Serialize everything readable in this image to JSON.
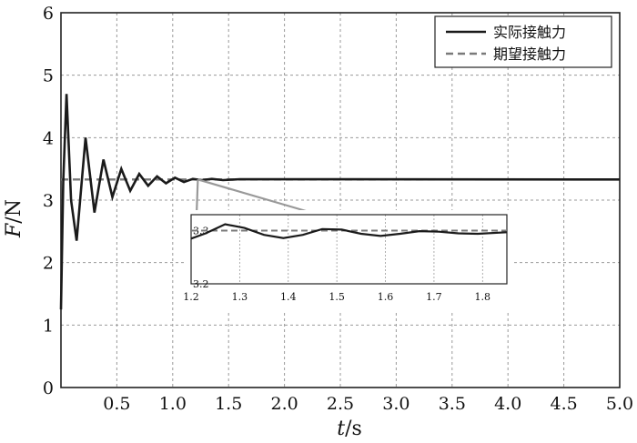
{
  "chart_data": {
    "type": "line",
    "title": "",
    "xlabel": {
      "var": "t",
      "unit": "/s"
    },
    "ylabel": {
      "var": "F",
      "unit": "/N"
    },
    "xlim": [
      0,
      5.0
    ],
    "ylim": [
      0,
      6
    ],
    "x_ticks": [
      0.5,
      1.0,
      1.5,
      2.0,
      2.5,
      3.0,
      3.5,
      4.0,
      4.5,
      5.0
    ],
    "x_tick_labels": [
      "0.5",
      "1.0",
      "1.5",
      "2.0",
      "2.5",
      "3.0",
      "3.5",
      "4.0",
      "4.5",
      "5.0"
    ],
    "y_ticks": [
      0,
      1,
      2,
      3,
      4,
      5,
      6
    ],
    "y_tick_labels": [
      "0",
      "1",
      "2",
      "3",
      "4",
      "5",
      "6"
    ],
    "grid": true,
    "legend_position": "top-right",
    "series": [
      {
        "name": "实际接触力",
        "style": "solid",
        "color": "#1a1a1a",
        "points": [
          [
            0,
            1.25
          ],
          [
            0.02,
            3.3
          ],
          [
            0.05,
            4.7
          ],
          [
            0.09,
            3.0
          ],
          [
            0.14,
            2.35
          ],
          [
            0.22,
            4.0
          ],
          [
            0.3,
            2.8
          ],
          [
            0.38,
            3.65
          ],
          [
            0.46,
            3.05
          ],
          [
            0.54,
            3.5
          ],
          [
            0.62,
            3.15
          ],
          [
            0.7,
            3.42
          ],
          [
            0.78,
            3.23
          ],
          [
            0.86,
            3.38
          ],
          [
            0.94,
            3.27
          ],
          [
            1.02,
            3.36
          ],
          [
            1.1,
            3.29
          ],
          [
            1.18,
            3.34
          ],
          [
            1.26,
            3.32
          ],
          [
            1.35,
            3.34
          ],
          [
            1.45,
            3.32
          ],
          [
            1.6,
            3.335
          ],
          [
            5.0,
            3.33
          ]
        ]
      },
      {
        "name": "期望接触力",
        "style": "dashed",
        "color": "#7a7a7a",
        "points": [
          [
            0,
            3.33
          ],
          [
            5.0,
            3.33
          ]
        ]
      }
    ],
    "inset": {
      "xlim": [
        1.2,
        1.85
      ],
      "ylim": [
        3.2,
        3.33
      ],
      "x_ticks": [
        1.2,
        1.3,
        1.4,
        1.5,
        1.6,
        1.7,
        1.8
      ],
      "x_tick_labels": [
        "1.2",
        "1.3",
        "1.4",
        "1.5",
        "1.6",
        "1.7",
        "1.8"
      ],
      "y_ticks": [
        3.2,
        3.3
      ],
      "y_tick_labels": [
        "3.2",
        "3.3"
      ],
      "source_region": [
        1.2,
        1.35
      ],
      "actual": [
        [
          1.2,
          3.285
        ],
        [
          1.23,
          3.295
        ],
        [
          1.27,
          3.312
        ],
        [
          1.31,
          3.305
        ],
        [
          1.35,
          3.292
        ],
        [
          1.39,
          3.286
        ],
        [
          1.43,
          3.292
        ],
        [
          1.47,
          3.303
        ],
        [
          1.51,
          3.302
        ],
        [
          1.55,
          3.294
        ],
        [
          1.59,
          3.29
        ],
        [
          1.63,
          3.294
        ],
        [
          1.67,
          3.299
        ],
        [
          1.71,
          3.298
        ],
        [
          1.75,
          3.295
        ],
        [
          1.79,
          3.294
        ],
        [
          1.85,
          3.297
        ]
      ],
      "desired": [
        [
          1.2,
          3.3
        ],
        [
          1.85,
          3.3
        ]
      ]
    }
  }
}
